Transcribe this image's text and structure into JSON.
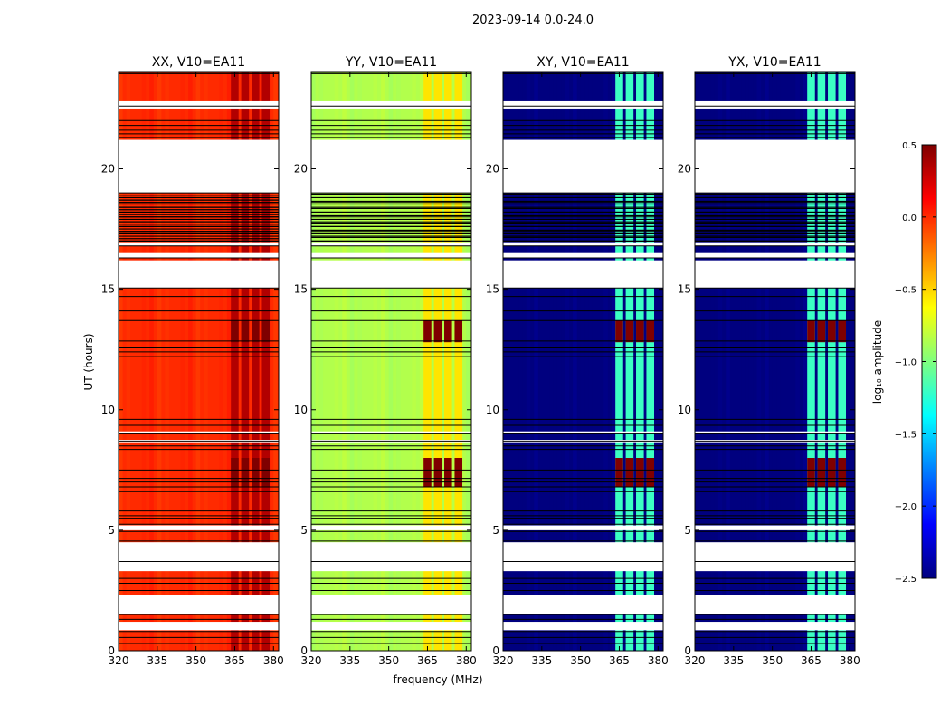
{
  "chart_data": {
    "type": "heatmap",
    "title": "2023-09-14 0.0-24.0",
    "xlabel": "frequency (MHz)",
    "ylabel": "UT (hours)",
    "xlim": [
      320,
      382
    ],
    "ylim": [
      0,
      24
    ],
    "xticks": [
      320,
      335,
      350,
      365,
      380
    ],
    "yticks": [
      0,
      5,
      10,
      15,
      20
    ],
    "colorbar": {
      "label": "log₁₀ amplitude",
      "range": [
        -2.5,
        0.5
      ],
      "ticks": [
        "0.5",
        "0.0",
        "−0.5",
        "−1.0",
        "−1.5",
        "−2.0",
        "−2.5"
      ],
      "colormap": [
        "#00007f",
        "#0000ff",
        "#007fff",
        "#00ffff",
        "#7fff7f",
        "#ffff00",
        "#ff7f00",
        "#ff0000",
        "#7f0000"
      ]
    },
    "band_mhz": [
      [
        363.5,
        366.5
      ],
      [
        367.5,
        370.5
      ],
      [
        371.5,
        374.5
      ],
      [
        375.5,
        378.5
      ]
    ],
    "panels": [
      {
        "name": "XX, V10=EA11",
        "base": 0.0,
        "band_level": 0.35,
        "hot_level": 0.5,
        "grid": "dense"
      },
      {
        "name": "YY, V10=EA11",
        "base": -0.85,
        "band_level": -0.55,
        "hot_level": 0.5,
        "grid": "sparse"
      },
      {
        "name": "XY, V10=EA11",
        "base": -2.5,
        "band_level": -1.2,
        "hot_level": 0.5,
        "grid": "sparse"
      },
      {
        "name": "YX, V10=EA11",
        "base": -2.5,
        "band_level": -1.2,
        "hot_level": 0.5,
        "grid": "sparse"
      }
    ],
    "gaps_ut": [
      [
        19.0,
        21.2
      ],
      [
        16.3,
        16.5
      ],
      [
        15.05,
        16.2
      ],
      [
        5.0,
        5.2
      ],
      [
        3.3,
        4.5
      ],
      [
        1.5,
        2.3
      ],
      [
        0.85,
        1.2
      ],
      [
        22.5,
        22.8
      ],
      [
        16.8,
        16.95
      ],
      [
        9.0,
        9.1
      ],
      [
        8.65,
        8.75
      ]
    ],
    "flag_dense_ut": [
      17.0,
      19.0
    ],
    "hot_ut": [
      [
        12.8,
        13.7
      ],
      [
        6.8,
        8.0
      ]
    ],
    "line_ut": [
      23.95,
      22.6,
      22.0,
      21.8,
      21.6,
      21.45,
      21.3,
      19.0,
      18.8,
      18.6,
      18.4,
      18.2,
      18.0,
      17.8,
      17.6,
      17.4,
      17.2,
      17.0,
      16.8,
      16.3,
      15.05,
      14.7,
      14.1,
      13.7,
      12.85,
      12.6,
      12.4,
      12.2,
      9.6,
      9.35,
      9.0,
      8.7,
      8.5,
      8.35,
      7.5,
      7.15,
      7.0,
      6.8,
      6.6,
      5.8,
      5.6,
      5.5,
      5.25,
      4.95,
      4.55,
      3.7,
      3.0,
      2.8,
      2.5,
      1.5,
      1.3,
      0.8,
      0.55,
      0.3,
      0.0
    ]
  }
}
